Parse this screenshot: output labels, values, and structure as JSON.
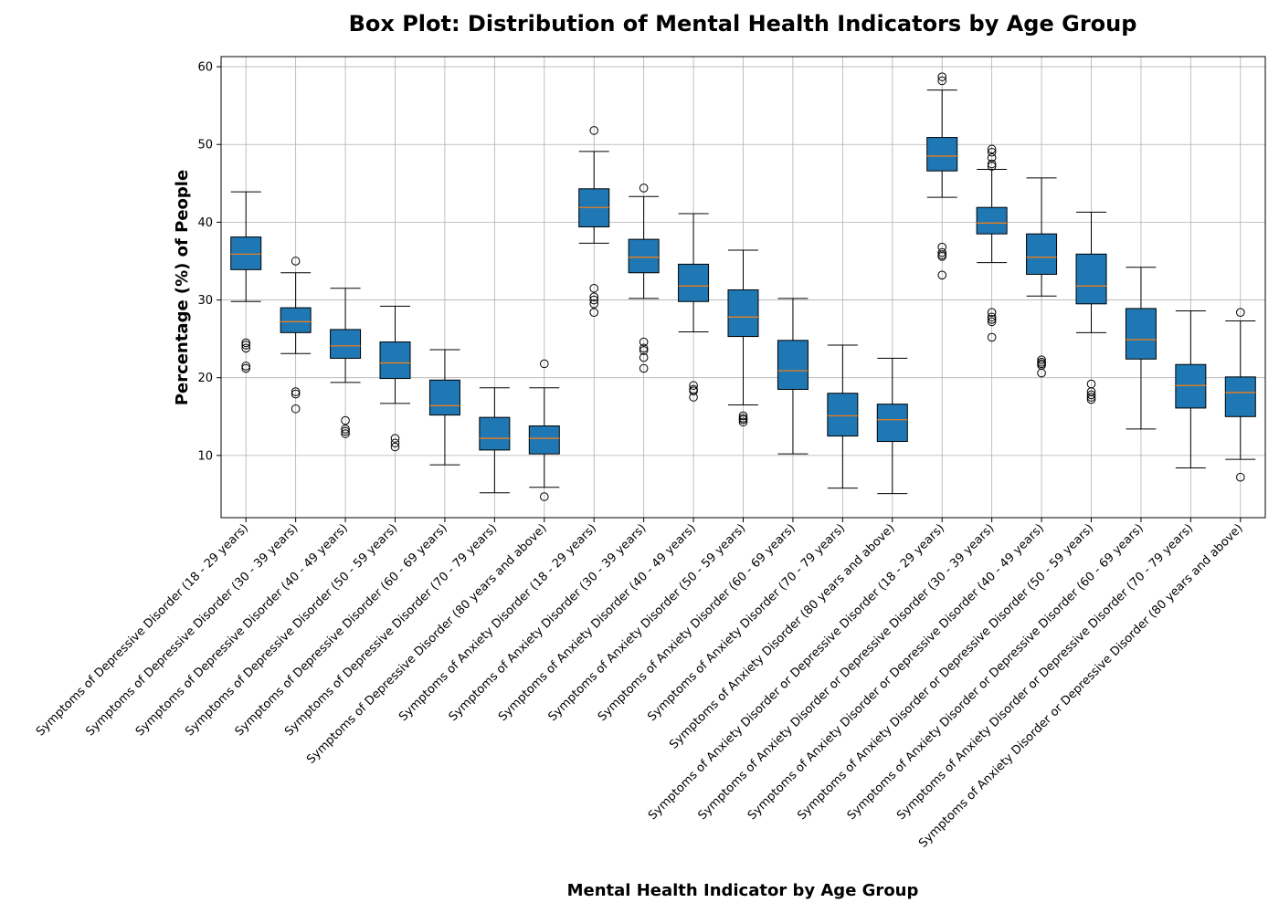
{
  "chart_data": {
    "type": "box",
    "title": "Box Plot: Distribution of Mental Health Indicators by Age Group",
    "xlabel": "Mental Health Indicator by Age Group",
    "ylabel": "Percentage (%) of People",
    "ylim": [
      2,
      61.3
    ],
    "yticks": [
      10,
      20,
      30,
      40,
      50,
      60
    ],
    "grid": true,
    "colors": {
      "box_fill": "#1f77b4",
      "median": "#ff7f0e",
      "grid": "#b0b0b0",
      "stroke": "#000000"
    },
    "categories": [
      "Symptoms of Depressive Disorder (18 - 29 years)",
      "Symptoms of Depressive Disorder (30 - 39 years)",
      "Symptoms of Depressive Disorder (40 - 49 years)",
      "Symptoms of Depressive Disorder (50 - 59 years)",
      "Symptoms of Depressive Disorder (60 - 69 years)",
      "Symptoms of Depressive Disorder (70 - 79 years)",
      "Symptoms of Depressive Disorder (80 years and above)",
      "Symptoms of Anxiety Disorder (18 - 29 years)",
      "Symptoms of Anxiety Disorder (30 - 39 years)",
      "Symptoms of Anxiety Disorder (40 - 49 years)",
      "Symptoms of Anxiety Disorder (50 - 59 years)",
      "Symptoms of Anxiety Disorder (60 - 69 years)",
      "Symptoms of Anxiety Disorder (70 - 79 years)",
      "Symptoms of Anxiety Disorder (80 years and above)",
      "Symptoms of Anxiety Disorder or Depressive Disorder (18 - 29 years)",
      "Symptoms of Anxiety Disorder or Depressive Disorder (30 - 39 years)",
      "Symptoms of Anxiety Disorder or Depressive Disorder (40 - 49 years)",
      "Symptoms of Anxiety Disorder or Depressive Disorder (50 - 59 years)",
      "Symptoms of Anxiety Disorder or Depressive Disorder (60 - 69 years)",
      "Symptoms of Anxiety Disorder or Depressive Disorder (70 - 79 years)",
      "Symptoms of Anxiety Disorder or Depressive Disorder (80 years and above)"
    ],
    "boxes": [
      {
        "whislo": 29.8,
        "q1": 33.9,
        "med": 35.9,
        "q3": 38.1,
        "whishi": 43.9,
        "fliers": [
          24.5,
          24.2,
          23.8,
          21.5,
          21.2
        ]
      },
      {
        "whislo": 23.1,
        "q1": 25.8,
        "med": 27.2,
        "q3": 29.0,
        "whishi": 33.5,
        "fliers": [
          35.0,
          18.2,
          17.9,
          16.0
        ]
      },
      {
        "whislo": 19.4,
        "q1": 22.5,
        "med": 24.1,
        "q3": 26.2,
        "whishi": 31.5,
        "fliers": [
          14.5,
          13.4,
          13.1,
          12.8
        ]
      },
      {
        "whislo": 16.7,
        "q1": 19.9,
        "med": 21.9,
        "q3": 24.6,
        "whishi": 29.2,
        "fliers": [
          12.2,
          11.6,
          11.1
        ]
      },
      {
        "whislo": 8.8,
        "q1": 15.2,
        "med": 16.4,
        "q3": 19.7,
        "whishi": 23.6,
        "fliers": []
      },
      {
        "whislo": 5.2,
        "q1": 10.7,
        "med": 12.2,
        "q3": 14.9,
        "whishi": 18.7,
        "fliers": []
      },
      {
        "whislo": 5.9,
        "q1": 10.2,
        "med": 12.2,
        "q3": 13.8,
        "whishi": 18.7,
        "fliers": [
          21.8,
          4.7
        ]
      },
      {
        "whislo": 37.3,
        "q1": 39.4,
        "med": 41.9,
        "q3": 44.3,
        "whishi": 49.1,
        "fliers": [
          51.8,
          31.5,
          30.4,
          30.0,
          29.5,
          28.4
        ]
      },
      {
        "whislo": 30.2,
        "q1": 33.5,
        "med": 35.5,
        "q3": 37.8,
        "whishi": 43.3,
        "fliers": [
          44.4,
          24.6,
          23.8,
          23.5,
          22.6,
          21.2
        ]
      },
      {
        "whislo": 25.9,
        "q1": 29.8,
        "med": 31.8,
        "q3": 34.6,
        "whishi": 41.1,
        "fliers": [
          19.0,
          18.5,
          18.3,
          17.5
        ]
      },
      {
        "whislo": 16.5,
        "q1": 25.3,
        "med": 27.8,
        "q3": 31.3,
        "whishi": 36.4,
        "fliers": [
          15.1,
          14.8,
          14.6,
          14.3
        ]
      },
      {
        "whislo": 10.2,
        "q1": 18.5,
        "med": 20.9,
        "q3": 24.8,
        "whishi": 30.2,
        "fliers": []
      },
      {
        "whislo": 5.8,
        "q1": 12.5,
        "med": 15.1,
        "q3": 18.0,
        "whishi": 24.2,
        "fliers": []
      },
      {
        "whislo": 5.1,
        "q1": 11.8,
        "med": 14.6,
        "q3": 16.6,
        "whishi": 22.5,
        "fliers": []
      },
      {
        "whislo": 43.2,
        "q1": 46.6,
        "med": 48.5,
        "q3": 50.9,
        "whishi": 57.0,
        "fliers": [
          58.7,
          58.2,
          36.8,
          36.1,
          35.8,
          35.6,
          33.2
        ]
      },
      {
        "whislo": 34.8,
        "q1": 38.5,
        "med": 39.9,
        "q3": 41.9,
        "whishi": 46.8,
        "fliers": [
          49.4,
          49.0,
          48.3,
          47.5,
          47.2,
          28.4,
          27.8,
          27.5,
          27.2,
          25.2
        ]
      },
      {
        "whislo": 30.5,
        "q1": 33.3,
        "med": 35.5,
        "q3": 38.5,
        "whishi": 45.7,
        "fliers": [
          22.3,
          22.0,
          21.8,
          21.6,
          20.6
        ]
      },
      {
        "whislo": 25.8,
        "q1": 29.5,
        "med": 31.8,
        "q3": 35.9,
        "whishi": 41.3,
        "fliers": [
          19.2,
          18.2,
          17.8,
          17.5,
          17.2
        ]
      },
      {
        "whislo": 13.4,
        "q1": 22.4,
        "med": 24.9,
        "q3": 28.9,
        "whishi": 34.2,
        "fliers": []
      },
      {
        "whislo": 8.4,
        "q1": 16.1,
        "med": 19.0,
        "q3": 21.7,
        "whishi": 28.6,
        "fliers": []
      },
      {
        "whislo": 9.5,
        "q1": 15.0,
        "med": 18.1,
        "q3": 20.1,
        "whishi": 27.3,
        "fliers": [
          28.4,
          7.2
        ]
      }
    ]
  }
}
